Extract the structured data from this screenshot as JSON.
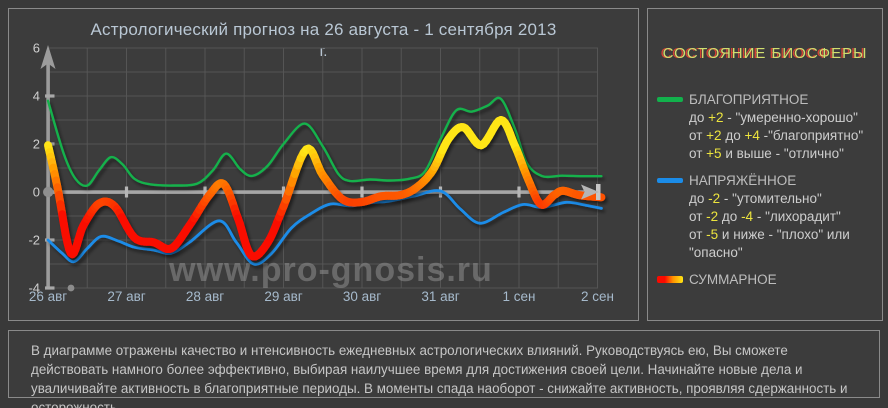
{
  "title": "Астрологический прогноз на 26 августа  - 1 сентября 2013",
  "subtitle": "г.",
  "watermark": "www.pro-gnosis.ru",
  "colors": {
    "green": "#12b14c",
    "blue": "#1b8ce8",
    "sum_red": "#fa0a00",
    "sum_orange": "#ff9400",
    "sum_yellow": "#ffe614",
    "grid": "#555555",
    "axis": "#a6a6a6",
    "axis_labels_y": "#cfcfcf",
    "axis_labels_x": "#a6bacc",
    "highlight": "#ece43e",
    "heading": "#cfe070"
  },
  "chart_data": {
    "type": "line",
    "title": "Астрологический прогноз на 26 августа - 1 сентября 2013 г.",
    "categories": [
      "26 авг",
      "27 авг",
      "28 авг",
      "29 авг",
      "30 авг",
      "31 авг",
      "1 сен",
      "2 сен"
    ],
    "y_ticks": [
      6,
      4,
      2,
      0,
      -2,
      -4
    ],
    "ylim": [
      -4,
      6
    ],
    "x_range_days": [
      0,
      7
    ],
    "grid": true,
    "legend_position": "right-panel",
    "series": [
      {
        "name": "БЛАГОПРИЯТНОЕ",
        "style": "green",
        "points": [
          [
            0,
            3.8
          ],
          [
            0.2,
            1.6
          ],
          [
            0.35,
            0.55
          ],
          [
            0.5,
            0.27
          ],
          [
            0.65,
            0.9
          ],
          [
            0.8,
            1.45
          ],
          [
            0.95,
            1.15
          ],
          [
            1.1,
            0.55
          ],
          [
            1.3,
            0.32
          ],
          [
            1.6,
            0.27
          ],
          [
            1.9,
            0.35
          ],
          [
            2.1,
            0.9
          ],
          [
            2.27,
            1.6
          ],
          [
            2.45,
            0.95
          ],
          [
            2.6,
            0.67
          ],
          [
            2.8,
            1.1
          ],
          [
            3.0,
            2.0
          ],
          [
            3.27,
            2.85
          ],
          [
            3.5,
            1.9
          ],
          [
            3.7,
            0.75
          ],
          [
            3.85,
            0.46
          ],
          [
            4.1,
            0.52
          ],
          [
            4.35,
            0.48
          ],
          [
            4.6,
            0.55
          ],
          [
            4.8,
            0.85
          ],
          [
            5.0,
            2.2
          ],
          [
            5.2,
            3.4
          ],
          [
            5.4,
            3.35
          ],
          [
            5.6,
            3.6
          ],
          [
            5.77,
            3.88
          ],
          [
            5.95,
            2.6
          ],
          [
            6.1,
            1.2
          ],
          [
            6.3,
            0.66
          ],
          [
            6.55,
            0.68
          ],
          [
            6.8,
            0.66
          ],
          [
            7.05,
            0.66
          ]
        ]
      },
      {
        "name": "НАПРЯЖЁННОЕ",
        "style": "blue",
        "points": [
          [
            0,
            -2.0
          ],
          [
            0.18,
            -2.55
          ],
          [
            0.33,
            -2.9
          ],
          [
            0.5,
            -2.35
          ],
          [
            0.68,
            -1.85
          ],
          [
            0.9,
            -2.05
          ],
          [
            1.1,
            -2.3
          ],
          [
            1.35,
            -2.42
          ],
          [
            1.57,
            -2.55
          ],
          [
            1.8,
            -2.1
          ],
          [
            2.18,
            -1.2
          ],
          [
            2.4,
            -2.1
          ],
          [
            2.62,
            -3.0
          ],
          [
            2.85,
            -2.55
          ],
          [
            3.1,
            -1.5
          ],
          [
            3.35,
            -0.9
          ],
          [
            3.6,
            -0.5
          ],
          [
            3.85,
            -0.58
          ],
          [
            4.1,
            -0.45
          ],
          [
            4.35,
            -0.38
          ],
          [
            4.65,
            -0.18
          ],
          [
            5.0,
            0.04
          ],
          [
            5.25,
            -0.7
          ],
          [
            5.5,
            -1.3
          ],
          [
            5.8,
            -0.85
          ],
          [
            6.05,
            -0.52
          ],
          [
            6.3,
            -0.64
          ],
          [
            6.6,
            -0.43
          ],
          [
            6.85,
            -0.55
          ],
          [
            7.05,
            -0.68
          ]
        ]
      },
      {
        "name": "СУММАРНОЕ",
        "style": "value-gradient",
        "points": [
          [
            0,
            1.95
          ],
          [
            0.12,
            0.2
          ],
          [
            0.29,
            -2.55
          ],
          [
            0.45,
            -1.4
          ],
          [
            0.65,
            -0.48
          ],
          [
            0.85,
            -0.6
          ],
          [
            1.1,
            -1.9
          ],
          [
            1.35,
            -2.1
          ],
          [
            1.57,
            -2.35
          ],
          [
            1.8,
            -1.4
          ],
          [
            2.05,
            -0.15
          ],
          [
            2.24,
            0.33
          ],
          [
            2.42,
            -1.1
          ],
          [
            2.59,
            -2.65
          ],
          [
            2.8,
            -2.1
          ],
          [
            3.0,
            -0.6
          ],
          [
            3.29,
            1.78
          ],
          [
            3.5,
            0.7
          ],
          [
            3.75,
            -0.3
          ],
          [
            3.99,
            -0.42
          ],
          [
            4.24,
            -0.18
          ],
          [
            4.5,
            -0.12
          ],
          [
            4.7,
            0.2
          ],
          [
            4.9,
            0.9
          ],
          [
            5.1,
            2.2
          ],
          [
            5.29,
            2.7
          ],
          [
            5.52,
            1.95
          ],
          [
            5.77,
            3.0
          ],
          [
            5.95,
            1.9
          ],
          [
            6.12,
            0.5
          ],
          [
            6.28,
            -0.52
          ],
          [
            6.45,
            -0.12
          ],
          [
            6.56,
            0.05
          ],
          [
            6.75,
            -0.12
          ],
          [
            6.9,
            -0.18
          ],
          [
            7.05,
            -0.22
          ]
        ]
      }
    ]
  },
  "legend": {
    "heading": "СОСТОЯНИЕ  БИОСФЕРЫ",
    "items": [
      {
        "label": "БЛАГОПРИЯТНОЕ",
        "swatch": "green",
        "lines": [
          [
            {
              "t": "до "
            },
            {
              "t": "+2",
              "hl": true
            },
            {
              "t": " - \"умеренно-хорошо\""
            }
          ],
          [
            {
              "t": "от "
            },
            {
              "t": "+2",
              "hl": true
            },
            {
              "t": " до "
            },
            {
              "t": "+4",
              "hl": true
            },
            {
              "t": " -\"благоприятно\""
            }
          ],
          [
            {
              "t": "от "
            },
            {
              "t": "+5",
              "hl": true
            },
            {
              "t": " и выше - \"отлично\""
            }
          ]
        ]
      },
      {
        "label": "НАПРЯЖЁННОЕ",
        "swatch": "blue",
        "lines": [
          [
            {
              "t": "до "
            },
            {
              "t": "-2",
              "hl": true
            },
            {
              "t": " - \"утомительно\""
            }
          ],
          [
            {
              "t": "от "
            },
            {
              "t": "-2",
              "hl": true
            },
            {
              "t": " до "
            },
            {
              "t": "-4",
              "hl": true
            },
            {
              "t": " - \"лихорадит\""
            }
          ],
          [
            {
              "t": "от "
            },
            {
              "t": "-5",
              "hl": true
            },
            {
              "t": " и ниже - \"плохо\" или"
            }
          ],
          [
            {
              "t": "\"опасно\""
            }
          ]
        ]
      },
      {
        "label": "СУММАРНОЕ",
        "swatch": "gradient",
        "lines": []
      }
    ]
  },
  "footer": {
    "text": "В диаграмме отражены  качество и нтенсивность  ежедневных астрологических влияний. Руководствуясь ею, Вы сможете  действовать намного  более эффективно, выбирая наилучшее время  для достижения своей цели. Начинайте новые  дела и уваличивайте активность в благоприятные  периоды. В моменты  спада наоборот  - снижайте активность, проявляя сдержанность  и осторожность"
  }
}
